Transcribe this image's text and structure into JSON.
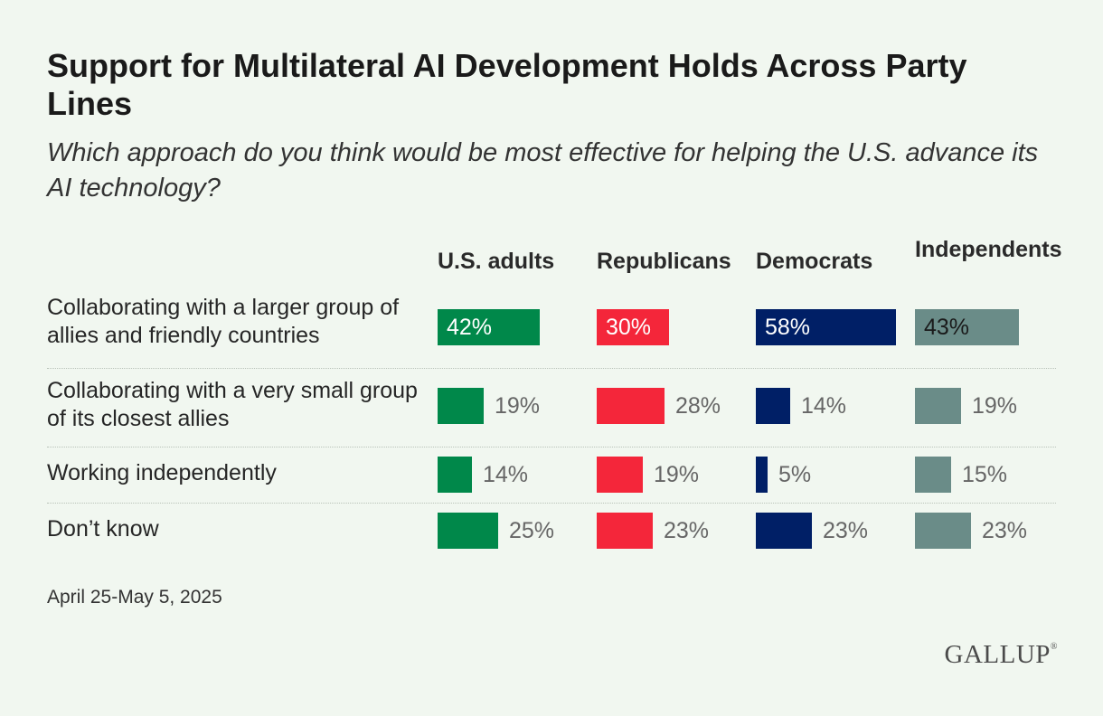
{
  "title": "Support for Multilateral AI Development Holds Across Party Lines",
  "subtitle": "Which approach do you think would be most effective for helping the U.S. advance its AI technology?",
  "footnote": "April 25-May 5, 2025",
  "logo": "GALLUP",
  "colors": {
    "background": "#f1f7f0",
    "us_adults": "#00884a",
    "republicans": "#f4263a",
    "democrats": "#001f66",
    "independents": "#6a8c88"
  },
  "chart_data": {
    "type": "bar",
    "orientation": "horizontal",
    "title": "Support for Multilateral AI Development Holds Across Party Lines",
    "subtitle": "Which approach do you think would be most effective for helping the U.S. advance its AI technology?",
    "unit": "%",
    "xlim": [
      0,
      100
    ],
    "grid": false,
    "legend": "none",
    "categories": [
      "Collaborating with a larger group of allies and friendly countries",
      "Collaborating with a very small group of its closest allies",
      "Working independently",
      "Don’t know"
    ],
    "series": [
      {
        "name": "U.S. adults",
        "color": "#00884a",
        "label_color": "light",
        "values": [
          42,
          19,
          14,
          25
        ],
        "labels": [
          "42%",
          "19%",
          "14%",
          "25%"
        ]
      },
      {
        "name": "Republicans",
        "color": "#f4263a",
        "label_color": "light",
        "values": [
          30,
          28,
          19,
          23
        ],
        "labels": [
          "30%",
          "28%",
          "19%",
          "23%"
        ]
      },
      {
        "name": "Democrats",
        "color": "#001f66",
        "label_color": "light",
        "values": [
          58,
          14,
          5,
          23
        ],
        "labels": [
          "58%",
          "14%",
          "5%",
          "23%"
        ]
      },
      {
        "name": "Independents",
        "color": "#6a8c88",
        "label_color": "dark",
        "values": [
          43,
          19,
          15,
          23
        ],
        "labels": [
          "43%",
          "19%",
          "15%",
          "23%"
        ]
      }
    ]
  }
}
